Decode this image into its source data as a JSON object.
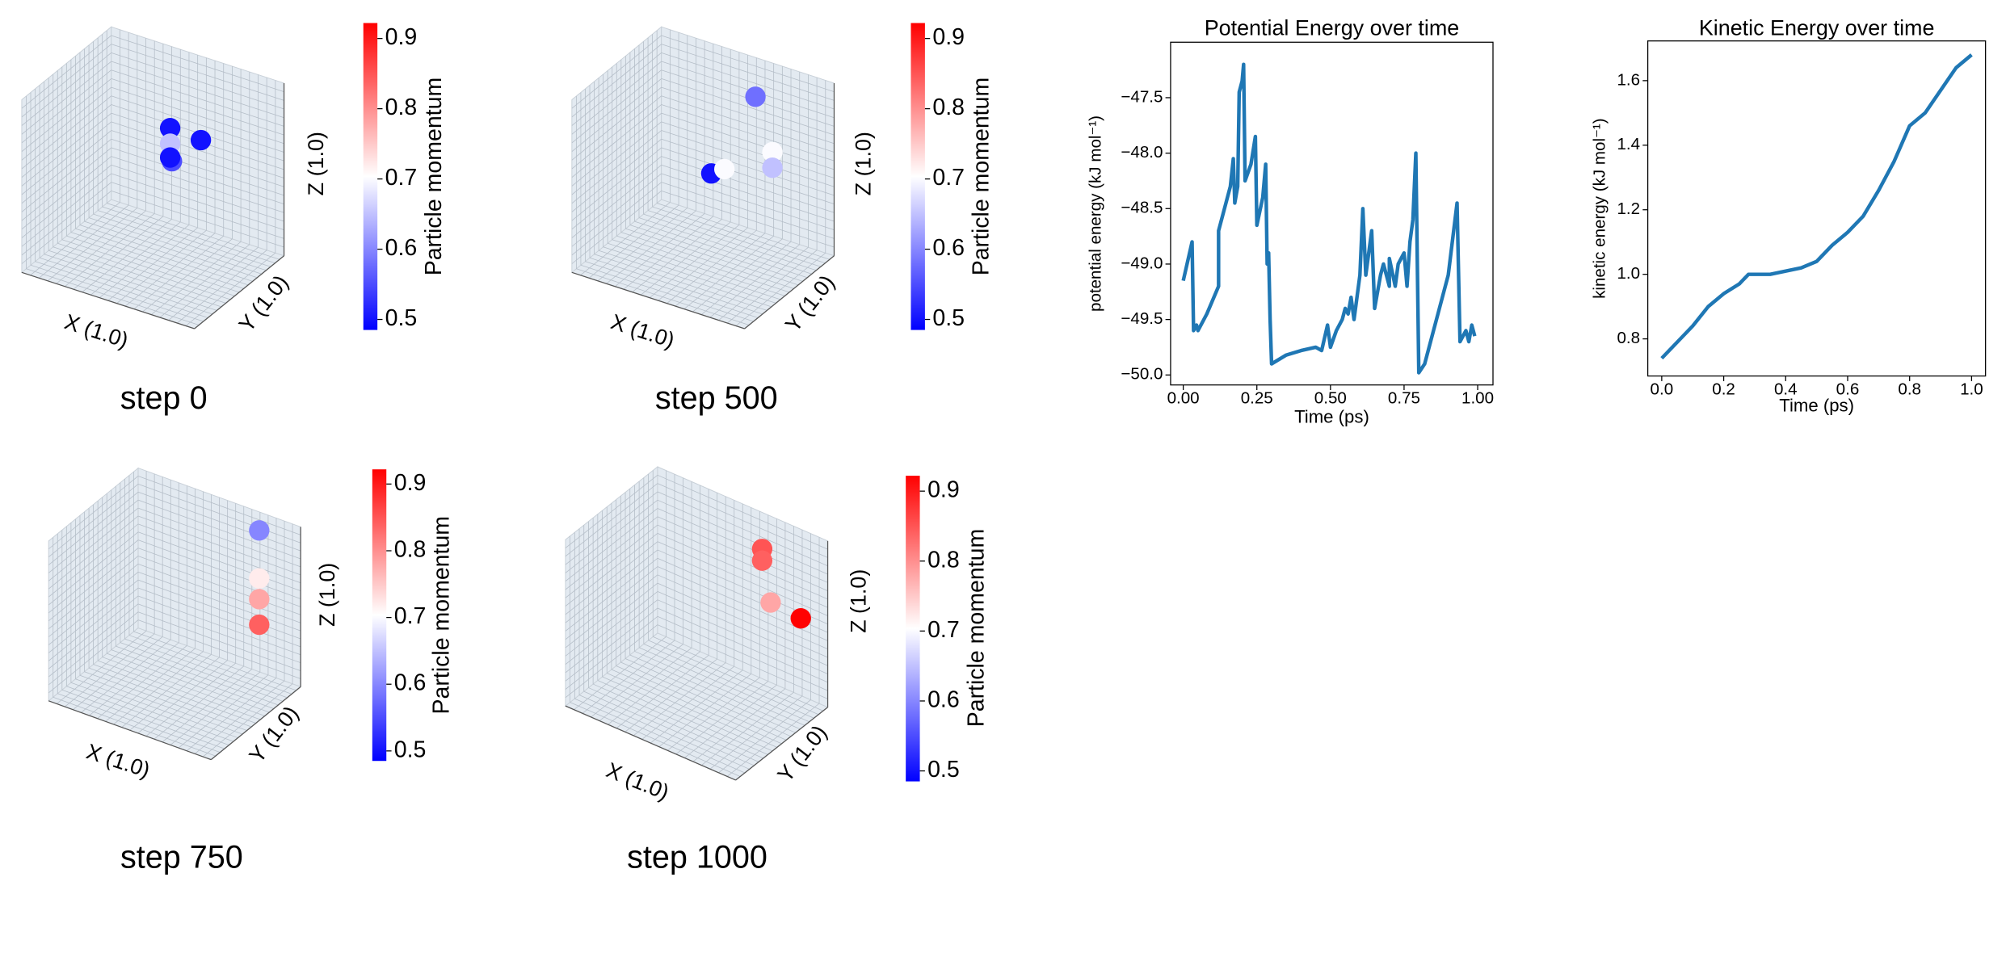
{
  "chart_data": [
    {
      "type": "scatter3d",
      "caption": "step 0",
      "xlabel": "X (1.0)",
      "ylabel": "Y (1.0)",
      "zlabel": "Z (1.0)",
      "colorbar_label": "Particle momentum",
      "cmap": "bwr",
      "clim": [
        0.485,
        0.922
      ],
      "cticks": [
        0.5,
        0.6,
        0.7,
        0.8,
        0.9
      ],
      "xlim": [
        0,
        1
      ],
      "ylim": [
        0,
        1
      ],
      "zlim": [
        0,
        1
      ],
      "x": [
        0.6,
        0.6,
        0.7,
        0.6,
        0.6
      ],
      "y": [
        0.5,
        0.5,
        0.65,
        0.5,
        0.52
      ],
      "z": [
        0.82,
        0.73,
        0.72,
        0.65,
        0.62
      ],
      "values": [
        0.5,
        0.65,
        0.5,
        0.5,
        0.55
      ]
    },
    {
      "type": "scatter3d",
      "caption": "step 500",
      "xlabel": "X (1.0)",
      "ylabel": "Y (1.0)",
      "zlabel": "Z (1.0)",
      "colorbar_label": "Particle momentum",
      "cmap": "bwr",
      "clim": [
        0.485,
        0.922
      ],
      "cticks": [
        0.5,
        0.6,
        0.7,
        0.8,
        0.9
      ],
      "xlim": [
        0,
        1
      ],
      "ylim": [
        0,
        1
      ],
      "zlim": [
        0,
        1
      ],
      "x": [
        0.7,
        0.6,
        0.65,
        0.85,
        0.85
      ],
      "y": [
        0.7,
        0.4,
        0.45,
        0.6,
        0.6
      ],
      "z": [
        0.95,
        0.6,
        0.62,
        0.72,
        0.63
      ],
      "values": [
        0.58,
        0.5,
        0.7,
        0.7,
        0.65
      ]
    },
    {
      "type": "scatter3d",
      "caption": "step 750",
      "xlabel": "X (1.0)",
      "ylabel": "Y (1.0)",
      "zlabel": "Z (1.0)",
      "colorbar_label": "Particle momentum",
      "cmap": "bwr",
      "clim": [
        0.485,
        0.922
      ],
      "cticks": [
        0.5,
        0.6,
        0.7,
        0.8,
        0.9
      ],
      "xlim": [
        0,
        1
      ],
      "ylim": [
        0,
        1
      ],
      "zlim": [
        0,
        1
      ],
      "x": [
        0.8,
        0.8,
        0.8,
        0.8
      ],
      "y": [
        0.9,
        0.9,
        0.9,
        0.9
      ],
      "z": [
        0.95,
        0.65,
        0.52,
        0.36
      ],
      "values": [
        0.6,
        0.72,
        0.78,
        0.84
      ]
    },
    {
      "type": "scatter3d",
      "caption": "step 1000",
      "xlabel": "X (1.0)",
      "ylabel": "Y (1.0)",
      "zlabel": "Z (1.0)",
      "colorbar_label": "Particle momentum",
      "cmap": "bwr",
      "clim": [
        0.485,
        0.922
      ],
      "cticks": [
        0.5,
        0.6,
        0.7,
        0.8,
        0.9
      ],
      "xlim": [
        0,
        1
      ],
      "ylim": [
        0,
        1
      ],
      "zlim": [
        0,
        1
      ],
      "x": [
        0.75,
        0.75,
        0.8,
        0.95
      ],
      "y": [
        0.75,
        0.75,
        0.75,
        0.8
      ],
      "z": [
        0.95,
        0.88,
        0.65,
        0.6
      ],
      "values": [
        0.85,
        0.84,
        0.78,
        0.92
      ]
    },
    {
      "type": "line",
      "title": "Potential Energy over time",
      "xlabel": "Time (ps)",
      "ylabel": "potential energy (kJ mol⁻¹)",
      "color": "#1f77b4",
      "xlim": [
        -0.043,
        1.052
      ],
      "ylim": [
        -50.09,
        -47.0
      ],
      "xticks": [
        {
          "value": 0,
          "label": "0.00"
        },
        {
          "value": 0.25,
          "label": "0.25"
        },
        {
          "value": 0.5,
          "label": "0.50"
        },
        {
          "value": 0.75,
          "label": "0.75"
        },
        {
          "value": 1,
          "label": "1.00"
        }
      ],
      "yticks": [
        {
          "value": -47.5,
          "label": "−47.5"
        },
        {
          "value": -48,
          "label": "−48.0"
        },
        {
          "value": -48.5,
          "label": "−48.5"
        },
        {
          "value": -49,
          "label": "−49.0"
        },
        {
          "value": -49.5,
          "label": "−49.5"
        },
        {
          "value": -50,
          "label": "−50.0"
        }
      ],
      "x": [
        0.0,
        0.03,
        0.035,
        0.045,
        0.05,
        0.08,
        0.12,
        0.12,
        0.16,
        0.17,
        0.175,
        0.185,
        0.19,
        0.2,
        0.205,
        0.21,
        0.23,
        0.245,
        0.25,
        0.27,
        0.28,
        0.285,
        0.29,
        0.295,
        0.3,
        0.35,
        0.4,
        0.45,
        0.47,
        0.49,
        0.5,
        0.52,
        0.54,
        0.55,
        0.56,
        0.57,
        0.58,
        0.6,
        0.61,
        0.62,
        0.64,
        0.65,
        0.67,
        0.68,
        0.7,
        0.7,
        0.72,
        0.73,
        0.75,
        0.76,
        0.77,
        0.78,
        0.79,
        0.8,
        0.82,
        0.85,
        0.9,
        0.93,
        0.94,
        0.96,
        0.97,
        0.98,
        0.99
      ],
      "values": [
        -49.15,
        -48.8,
        -49.6,
        -49.55,
        -49.6,
        -49.45,
        -49.2,
        -48.7,
        -48.3,
        -48.05,
        -48.45,
        -48.3,
        -47.45,
        -47.35,
        -47.2,
        -48.25,
        -48.1,
        -47.85,
        -48.65,
        -48.4,
        -48.1,
        -49.0,
        -48.9,
        -49.5,
        -49.9,
        -49.82,
        -49.78,
        -49.75,
        -49.78,
        -49.55,
        -49.75,
        -49.6,
        -49.5,
        -49.4,
        -49.45,
        -49.3,
        -49.5,
        -49.1,
        -48.5,
        -49.1,
        -48.7,
        -49.4,
        -49.1,
        -49.0,
        -49.2,
        -48.95,
        -49.2,
        -49.0,
        -48.9,
        -49.2,
        -48.8,
        -48.6,
        -48.0,
        -49.98,
        -49.9,
        -49.6,
        -49.1,
        -48.45,
        -49.7,
        -49.6,
        -49.7,
        -49.55,
        -49.65
      ]
    },
    {
      "type": "line",
      "title": "Kinetic Energy over time",
      "xlabel": "Time (ps)",
      "ylabel": "kinetic energy (kJ mol⁻¹)",
      "color": "#1f77b4",
      "xlim": [
        -0.045,
        1.045
      ],
      "ylim": [
        0.685,
        1.723
      ],
      "xticks": [
        {
          "value": 0,
          "label": "0.0"
        },
        0.2,
        0.4,
        0.6,
        0.8,
        {
          "value": 1,
          "label": "1.0"
        }
      ],
      "yticks": [
        0.8,
        {
          "value": 1,
          "label": "1.0"
        },
        1.2,
        1.4,
        1.6
      ],
      "x": [
        0,
        0.05,
        0.1,
        0.15,
        0.2,
        0.25,
        0.28,
        0.35,
        0.45,
        0.5,
        0.55,
        0.6,
        0.65,
        0.7,
        0.75,
        0.8,
        0.85,
        0.9,
        0.95,
        1.0
      ],
      "values": [
        0.74,
        0.79,
        0.84,
        0.9,
        0.94,
        0.97,
        1.0,
        1.0,
        1.02,
        1.04,
        1.09,
        1.13,
        1.18,
        1.26,
        1.35,
        1.46,
        1.5,
        1.57,
        1.64,
        1.68
      ]
    }
  ]
}
